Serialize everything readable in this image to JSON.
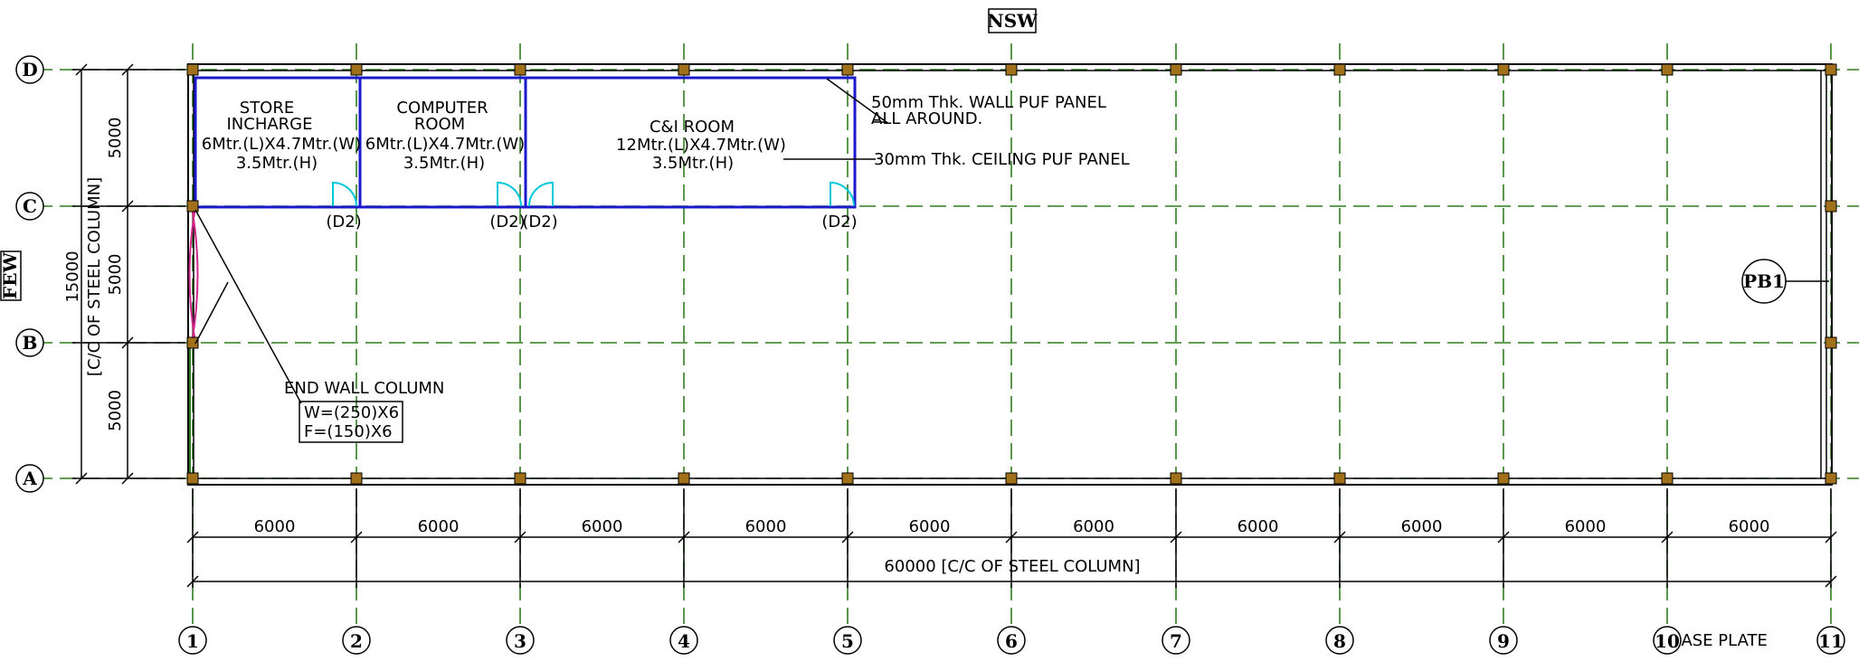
{
  "drawing": {
    "orientation_top": "NSW",
    "orientation_left": "FEW",
    "column_grid_labels": [
      "1",
      "2",
      "3",
      "4",
      "5",
      "6",
      "7",
      "8",
      "9",
      "10",
      "11"
    ],
    "row_grid_labels": [
      "A",
      "B",
      "C",
      "D"
    ],
    "bay_dimension": "6000",
    "overall_length": "60000  [C/C  OF  STEEL  COLUMN]",
    "row_dimensions": [
      "5000",
      "5000",
      "5000"
    ],
    "overall_width": "15000",
    "overall_width_note": "[C/C  OF  STEEL  COLUMN]",
    "base_plate_label": "BASE  PLATE",
    "pb_tag": "PB1",
    "door_tag": "(D2)",
    "rooms": [
      {
        "name_line1": "STORE",
        "name_line2": "INCHARGE",
        "size": "6Mtr.(L)X4.7Mtr.(W)",
        "height": "3.5Mtr.(H)"
      },
      {
        "name_line1": "COMPUTER",
        "name_line2": "ROOM",
        "size": "6Mtr.(L)X4.7Mtr.(W)",
        "height": "3.5Mtr.(H)"
      },
      {
        "name_line1": "C&I  ROOM",
        "name_line2": "",
        "size": "12Mtr.(L)X4.7Mtr.(W)",
        "height": "3.5Mtr.(H)"
      }
    ],
    "notes": {
      "wall_panel_1": "50mm  Thk.  WALL  PUF  PANEL",
      "wall_panel_2": "ALL  AROUND.",
      "ceiling_panel": "30mm  Thk.  CEILING  PUF  PANEL",
      "end_wall_column": "END  WALL  COLUMN",
      "end_wall_w": "W=(250)X6",
      "end_wall_f": "F=(150)X6"
    },
    "colors": {
      "grid": "#2e7d1f",
      "room_outline": "#1a1acc",
      "door": "#00c8d8",
      "bracing": "#d0288c",
      "column_fill": "#a0701a",
      "line": "#000000"
    }
  }
}
